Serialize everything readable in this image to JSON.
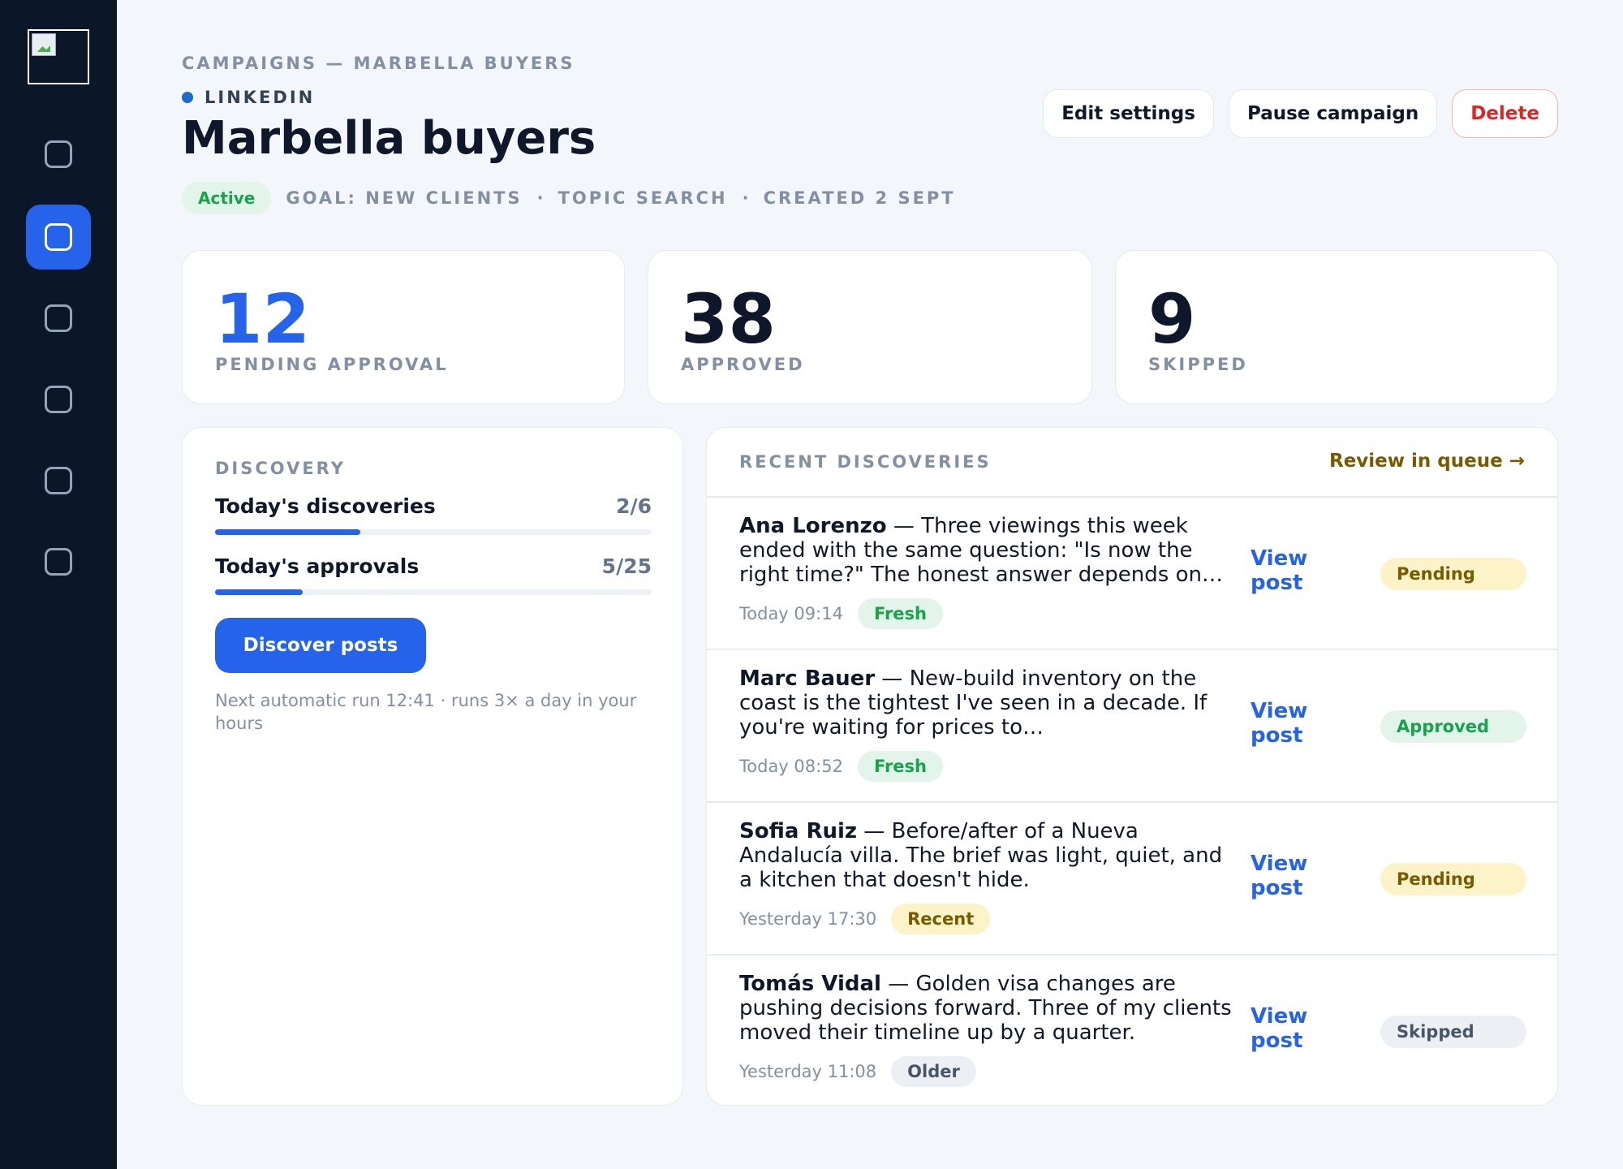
{
  "sidebar": {
    "items": [
      {
        "icon": "nav-icon-1",
        "active": false
      },
      {
        "icon": "nav-icon-2",
        "active": true
      },
      {
        "icon": "nav-icon-3",
        "active": false
      },
      {
        "icon": "nav-icon-4",
        "active": false
      },
      {
        "icon": "nav-icon-5",
        "active": false
      },
      {
        "icon": "nav-icon-6",
        "active": false
      }
    ]
  },
  "header": {
    "breadcrumb": "CAMPAIGNS — MARBELLA BUYERS",
    "channel": "LINKEDIN",
    "title": "Marbella buyers",
    "status": "Active",
    "goal": "GOAL: NEW CLIENTS",
    "mode": "TOPIC SEARCH",
    "created": "CREATED 2 SEPT",
    "separator": "·"
  },
  "actions": {
    "edit": "Edit settings",
    "pause": "Pause campaign",
    "delete": "Delete"
  },
  "stats": {
    "pending": {
      "value": "12",
      "label": "PENDING APPROVAL"
    },
    "approved": {
      "value": "38",
      "label": "APPROVED"
    },
    "skipped": {
      "value": "9",
      "label": "SKIPPED"
    }
  },
  "discovery": {
    "heading": "DISCOVERY",
    "discoveries": {
      "label": "Today's discoveries",
      "count": "2/6",
      "fraction": 0.333
    },
    "approvals": {
      "label": "Today's approvals",
      "count": "5/25",
      "fraction": 0.2
    },
    "button": "Discover posts",
    "next_run": "Next automatic run 12:41 · runs 3× a day in your hours"
  },
  "recent": {
    "heading": "RECENT DISCOVERIES",
    "review_link": "Review in queue →",
    "view_label": "View post",
    "rows": [
      {
        "author": "Ana Lorenzo",
        "text": " — Three viewings this week ended with the same question: \"Is now the right time?\" The honest answer depends on…",
        "time": "Today 09:14",
        "tag": "Fresh",
        "status": "Pending"
      },
      {
        "author": "Marc Bauer",
        "text": " — New-build inventory on the coast is the tightest I've seen in a decade. If you're waiting for prices to…",
        "time": "Today 08:52",
        "tag": "Fresh",
        "status": "Approved"
      },
      {
        "author": "Sofia Ruiz",
        "text": " — Before/after of a Nueva Andalucía villa. The brief was light, quiet, and a kitchen that doesn't hide.",
        "time": "Yesterday 17:30",
        "tag": "Recent",
        "status": "Pending"
      },
      {
        "author": "Tomás Vidal",
        "text": " — Golden visa changes are pushing decisions forward. Three of my clients moved their timeline up by a quarter.",
        "time": "Yesterday 11:08",
        "tag": "Older",
        "status": "Skipped"
      }
    ]
  },
  "colors": {
    "accent": "#2563eb",
    "sidebar_bg": "#0b1628",
    "page_bg": "#f3f6fa",
    "success": "#16a34a",
    "danger": "#dc2626",
    "warning_text": "#7a5a00"
  }
}
